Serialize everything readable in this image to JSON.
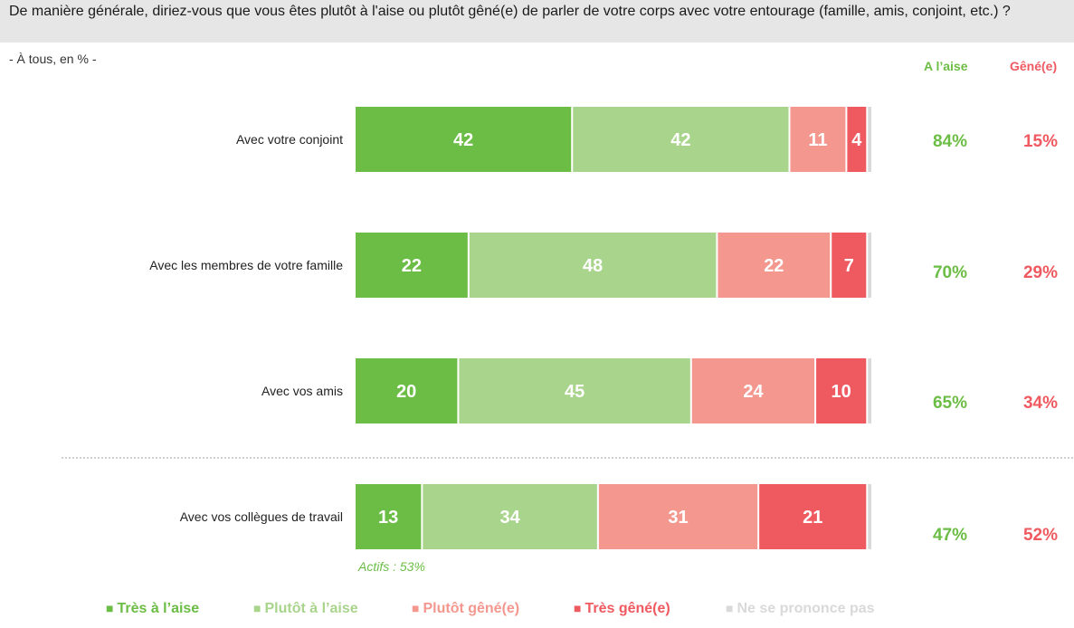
{
  "header": {
    "question": "De manière générale, diriez-vous que vous êtes plutôt à l'aise ou plutôt gêné(e) de parler de votre corps avec votre entourage (famille, amis, conjoint, etc.) ?",
    "subtitle": "- À tous, en % -"
  },
  "columns": {
    "aise": "A l’aise",
    "gene": "Gêné(e)"
  },
  "colors": {
    "tres_aise": "#6cbd45",
    "plutot_aise": "#a9d48c",
    "plutot_gene": "#f4978e",
    "tres_gene": "#ef5a60",
    "nsp": "#d9d9d9",
    "aise_text": "#6cbd45",
    "gene_text": "#ef5a60"
  },
  "note": "Actifs : 53%",
  "chart_data": {
    "type": "bar",
    "orientation": "horizontal",
    "stacked": true,
    "categories": [
      "Avec votre conjoint",
      "Avec les membres de votre famille",
      "Avec vos amis",
      "Avec vos collègues de travail"
    ],
    "series": [
      {
        "name": "Très à l’aise",
        "values": [
          42,
          22,
          20,
          13
        ]
      },
      {
        "name": "Plutôt à l’aise",
        "values": [
          42,
          48,
          45,
          34
        ]
      },
      {
        "name": "Plutôt gêné(e)",
        "values": [
          11,
          22,
          24,
          31
        ]
      },
      {
        "name": "Très gêné(e)",
        "values": [
          4,
          7,
          10,
          21
        ]
      },
      {
        "name": "Ne se prononce pas",
        "values": [
          1,
          1,
          1,
          1
        ]
      }
    ],
    "totals": {
      "aise": [
        "84%",
        "70%",
        "65%",
        "47%"
      ],
      "gene": [
        "15%",
        "29%",
        "34%",
        "52%"
      ]
    },
    "xlim": [
      0,
      100
    ],
    "legend_position": "bottom"
  }
}
